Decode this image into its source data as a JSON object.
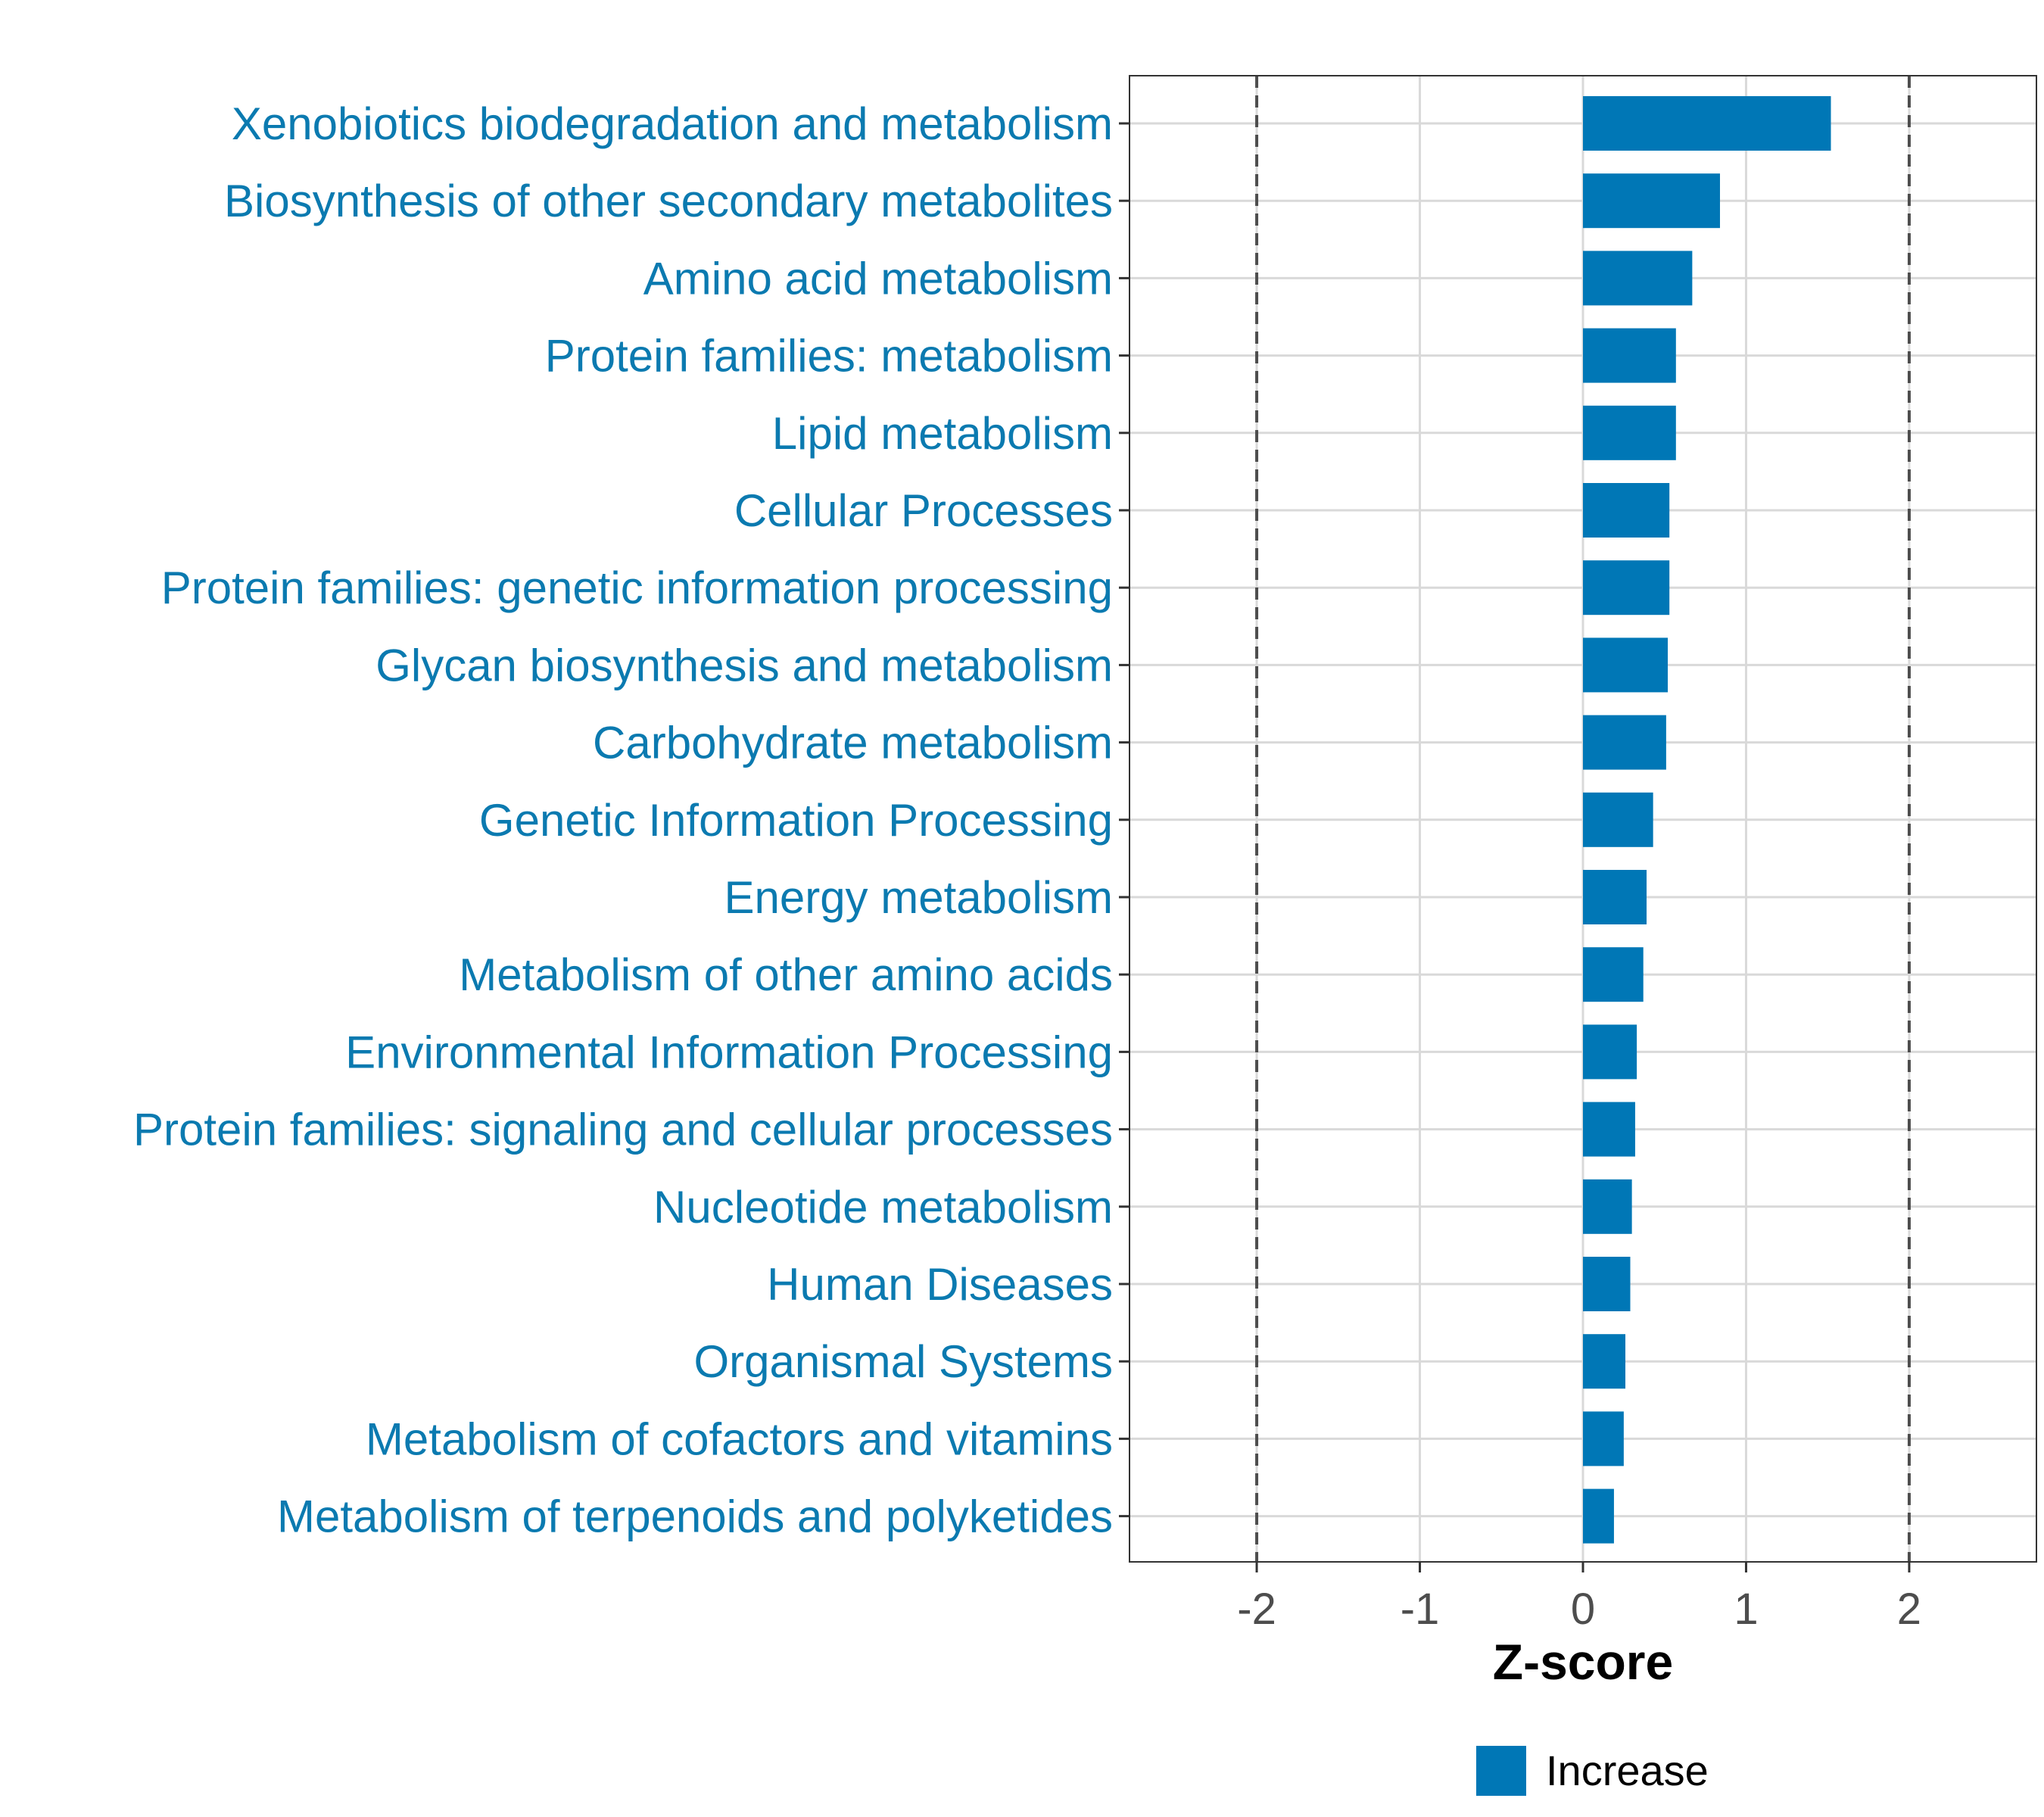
{
  "chart_data": {
    "type": "bar",
    "orientation": "horizontal",
    "categories": [
      "Xenobiotics biodegradation and metabolism",
      "Biosynthesis of other secondary metabolites",
      "Amino acid metabolism",
      "Protein families: metabolism",
      "Lipid metabolism",
      "Cellular Processes",
      "Protein families: genetic information processing",
      "Glycan biosynthesis and metabolism",
      "Carbohydrate metabolism",
      "Genetic Information Processing",
      "Energy metabolism",
      "Metabolism of other amino acids",
      "Environmental Information Processing",
      "Protein families: signaling and cellular processes",
      "Nucleotide metabolism",
      "Human Diseases",
      "Organismal Systems",
      "Metabolism of cofactors and vitamins",
      "Metabolism of terpenoids and polyketides"
    ],
    "values": [
      1.52,
      0.84,
      0.67,
      0.57,
      0.57,
      0.53,
      0.53,
      0.52,
      0.51,
      0.43,
      0.39,
      0.37,
      0.33,
      0.32,
      0.3,
      0.29,
      0.26,
      0.25,
      0.19
    ],
    "series_name": "Increase",
    "xlabel": "Z-score",
    "ylabel": "",
    "xlim": [
      -2.78,
      2.78
    ],
    "xticks": [
      -2,
      -1,
      0,
      1,
      2
    ],
    "xtick_labels": [
      "-2",
      "-1",
      "0",
      "1",
      "2"
    ],
    "reference_lines": [
      -2,
      2
    ],
    "grid": true,
    "legend": {
      "position": "bottom",
      "entries": [
        "Increase"
      ]
    },
    "colors": {
      "bar": "#0077B6",
      "category_label": "#0B7AB0",
      "grid": "#d9d9d9",
      "reference_line": "#4d4d4d",
      "tick_label": "#4d4d4d",
      "panel_border": "#333333"
    }
  }
}
